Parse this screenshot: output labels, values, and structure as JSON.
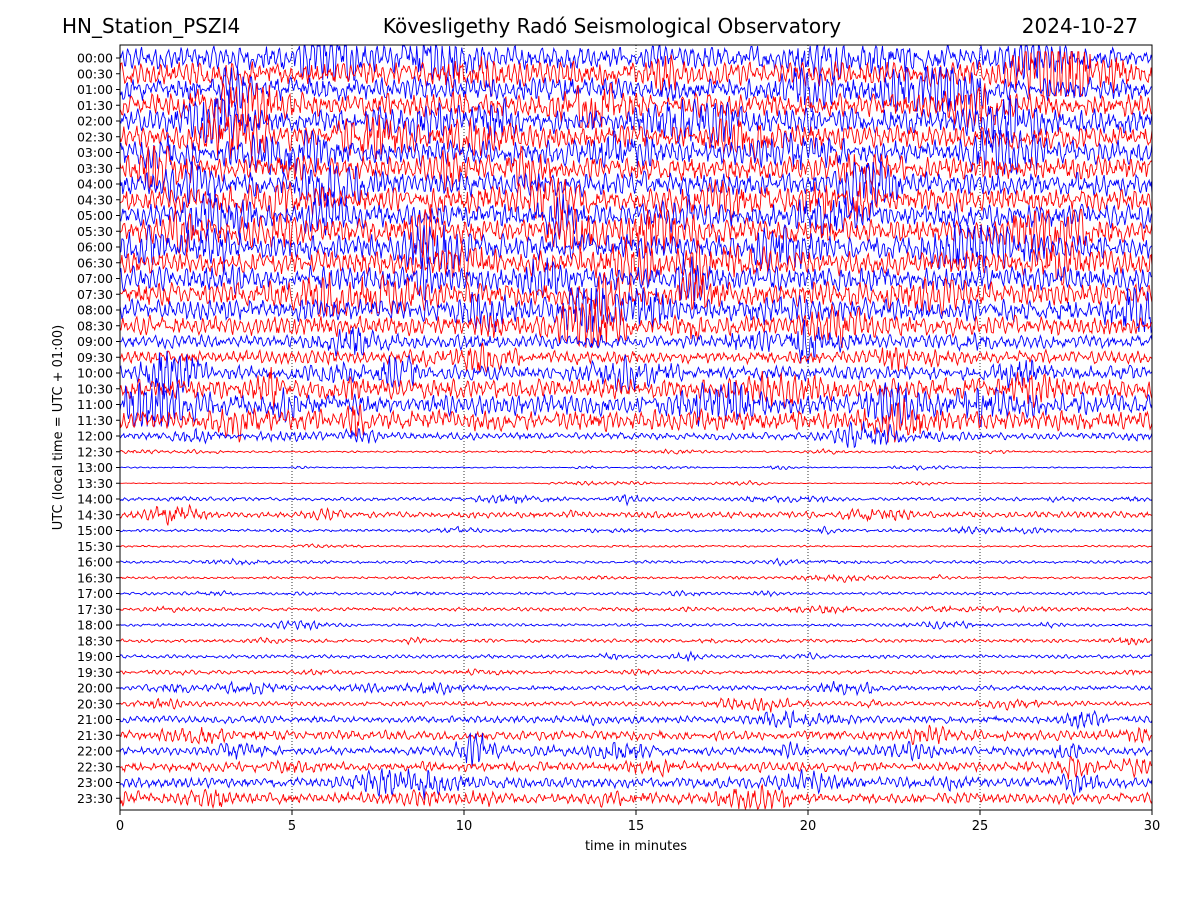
{
  "header": {
    "station": "HN_Station_PSZI4",
    "title": "Kövesligethy Radó Seismological Observatory",
    "date": "2024-10-27"
  },
  "chart_data": {
    "type": "line",
    "subtype": "helicorder",
    "xlabel": "time in minutes",
    "ylabel": "UTC (local time = UTC + 01:00)",
    "xlim": [
      0,
      30
    ],
    "x_ticks": [
      0,
      5,
      10,
      15,
      20,
      25,
      30
    ],
    "x_tick_labels": [
      "0",
      "5",
      "10",
      "15",
      "20",
      "25",
      "30"
    ],
    "grid": "vertical dotted at 5, 10, 15, 20, 25",
    "row_labels": [
      "00:00",
      "00:30",
      "01:00",
      "01:30",
      "02:00",
      "02:30",
      "03:00",
      "03:30",
      "04:00",
      "04:30",
      "05:00",
      "05:30",
      "06:00",
      "06:30",
      "07:00",
      "07:30",
      "08:00",
      "08:30",
      "09:00",
      "09:30",
      "10:00",
      "10:30",
      "11:00",
      "11:30",
      "12:00",
      "12:30",
      "13:00",
      "13:30",
      "14:00",
      "14:30",
      "15:00",
      "15:30",
      "16:00",
      "16:30",
      "17:00",
      "17:30",
      "18:00",
      "18:30",
      "19:00",
      "19:30",
      "20:00",
      "20:30",
      "21:00",
      "21:30",
      "22:00",
      "22:30",
      "23:00",
      "23:30"
    ],
    "row_colors": [
      "#0000ff",
      "#ff0000"
    ],
    "relative_activity": [
      1.0,
      1.0,
      1.0,
      1.0,
      1.0,
      1.0,
      1.0,
      1.0,
      1.0,
      1.0,
      1.0,
      1.0,
      1.0,
      1.0,
      1.0,
      1.0,
      0.9,
      0.8,
      0.55,
      0.55,
      0.6,
      0.8,
      0.9,
      0.85,
      0.3,
      0.08,
      0.05,
      0.03,
      0.15,
      0.25,
      0.12,
      0.08,
      0.12,
      0.1,
      0.12,
      0.15,
      0.12,
      0.15,
      0.15,
      0.15,
      0.2,
      0.2,
      0.3,
      0.4,
      0.35,
      0.4,
      0.45,
      0.45
    ]
  }
}
